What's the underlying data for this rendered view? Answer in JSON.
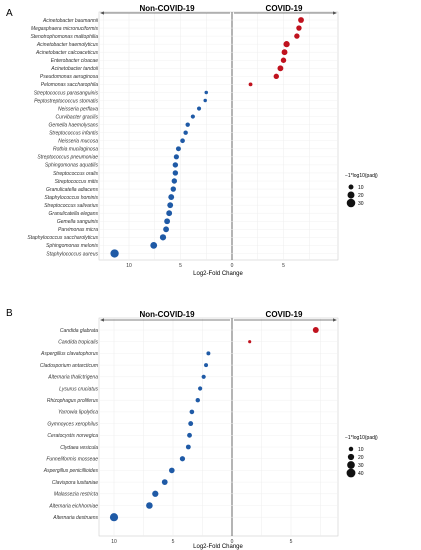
{
  "chart_data": [
    {
      "type": "scatter",
      "panel": "A",
      "group_left": "Non-COVID-19",
      "group_right": "COVID-19",
      "xlabel": "Log2-Fold Change",
      "xticks": [
        "10",
        "5",
        "0",
        "5"
      ],
      "legend_title": "−1*log10(padj)",
      "legend_sizes": [
        10,
        20,
        30
      ],
      "colors": {
        "up": "#c0121e",
        "down": "#1f5aa6"
      },
      "categories": [
        "Acinetobacter baumannii",
        "Megasphaera micronuciformis",
        "Stenotrophomonas maltophilia",
        "Acinetobacter haemolyticus",
        "Acinetobacter calcoaceticus",
        "Enterobacter cloacae",
        "Acinetobacter tandoii",
        "Pseudomonas aeruginosa",
        "Pelomonas saccharophila",
        "Streptococcus parasanguinis",
        "Peptostreptococcus stomatis",
        "Neisseria perflava",
        "Curvibacter gracilis",
        "Gemella haemolysans",
        "Streptococcus infantis",
        "Neisseria mucosa",
        "Rothia mucilaginosa",
        "Streptococcus pneumoniae",
        "Sphingomonas aquatilis",
        "Streptococcus oralis",
        "Streptococcus mitis",
        "Granulicatella adiacens",
        "Staphylococcus hominis",
        "Streptococcus salivarius",
        "Granulicatella elegans",
        "Gemella sanguinis",
        "Parvimonas micra",
        "Staphylococcus saccharolyticus",
        "Sphingomonas melonis",
        "Staphylococcus aureus"
      ],
      "values": [
        6.7,
        6.5,
        6.3,
        5.3,
        5.1,
        5.0,
        4.7,
        4.3,
        1.8,
        -2.5,
        -2.6,
        -3.2,
        -3.8,
        -4.3,
        -4.5,
        -4.8,
        -5.2,
        -5.4,
        -5.5,
        -5.5,
        -5.6,
        -5.7,
        -5.9,
        -6.0,
        -6.1,
        -6.3,
        -6.4,
        -6.7,
        -7.6,
        -11.4
      ],
      "padj_scaled": [
        14,
        12,
        12,
        16,
        14,
        12,
        14,
        12,
        6,
        5,
        5,
        7,
        7,
        8,
        8,
        9,
        10,
        11,
        12,
        12,
        12,
        12,
        14,
        14,
        14,
        14,
        14,
        16,
        19,
        28
      ],
      "xlim": [
        -13,
        10
      ]
    },
    {
      "type": "scatter",
      "panel": "B",
      "group_left": "Non-COVID-19",
      "group_right": "COVID-19",
      "xlabel": "Log2-Fold Change",
      "xticks": [
        "10",
        "5",
        "0",
        "5"
      ],
      "legend_title": "−1*log10(padj)",
      "legend_sizes": [
        10,
        20,
        30,
        40
      ],
      "colors": {
        "up": "#c0121e",
        "down": "#1f5aa6"
      },
      "categories": [
        "Candida glabrata",
        "Candida tropicalis",
        "Aspergillus clavatophorus",
        "Cladosporium antarcticum",
        "Alternaria thalictrigena",
        "Lysurus cruciatus",
        "Rhizophagus proliferus",
        "Yarrowia lipolytica",
        "Gymnoyces xerophilus",
        "Ceratocystis norvegica",
        "Clydaea vesicula",
        "Funneliformis mosseae",
        "Aspergillus penicillioides",
        "Clavispora lusitaniae",
        "Malassezia restricta",
        "Alternaria eichhorniae",
        "Alternaria destruens"
      ],
      "values": [
        7.1,
        1.5,
        -2.0,
        -2.2,
        -2.4,
        -2.7,
        -2.9,
        -3.4,
        -3.5,
        -3.6,
        -3.7,
        -4.2,
        -5.1,
        -5.7,
        -6.5,
        -7.0,
        -10.0
      ],
      "padj_scaled": [
        18,
        5,
        8,
        8,
        9,
        9,
        10,
        11,
        12,
        12,
        12,
        14,
        16,
        17,
        20,
        22,
        34
      ],
      "xlim": [
        -12.5,
        10
      ]
    }
  ]
}
